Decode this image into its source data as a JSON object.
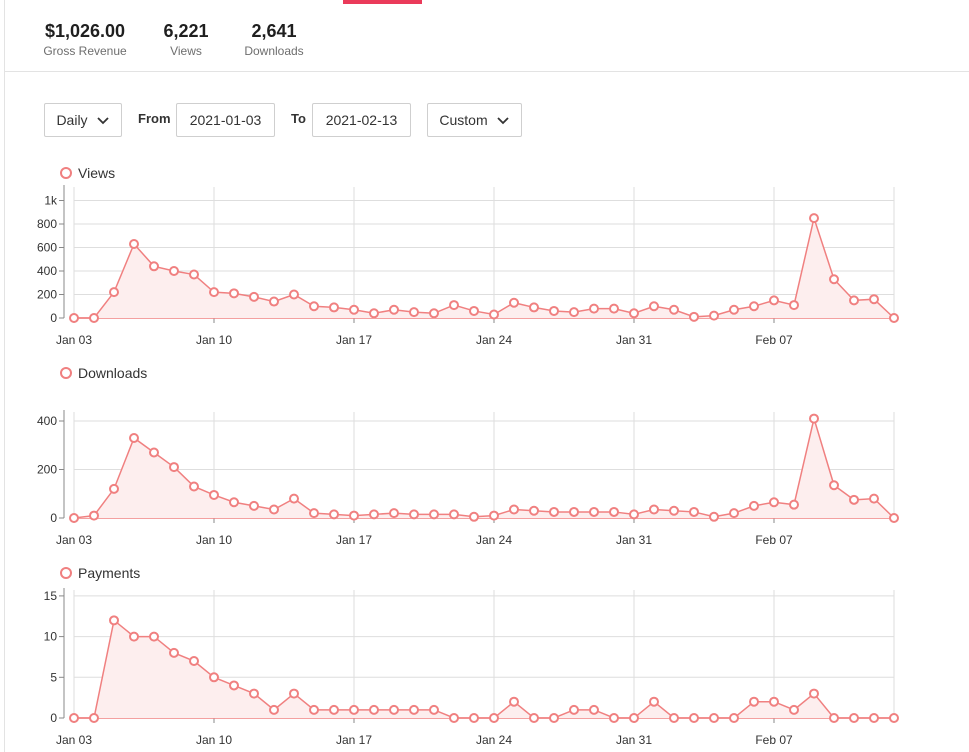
{
  "summary": {
    "gross_revenue": {
      "value": "$1,026.00",
      "label": "Gross Revenue"
    },
    "views": {
      "value": "6,221",
      "label": "Views"
    },
    "downloads": {
      "value": "2,641",
      "label": "Downloads"
    }
  },
  "filters": {
    "interval": "Daily",
    "from_label": "From",
    "from_date": "2021-01-03",
    "to_label": "To",
    "to_date": "2021-02-13",
    "range": "Custom"
  },
  "colors": {
    "series": "#f08080",
    "fill": "#fdeeee",
    "accent": "#ea3a5a"
  },
  "chart_data": [
    {
      "type": "area",
      "title": "Views",
      "x_ticks": [
        "Jan 03",
        "Jan 10",
        "Jan 17",
        "Jan 24",
        "Jan 31",
        "Feb 07"
      ],
      "y_ticks": [
        "0",
        "200",
        "400",
        "600",
        "800",
        "1k"
      ],
      "ylim": [
        0,
        1000
      ],
      "grid": true,
      "series": [
        {
          "name": "Views",
          "values": [
            0,
            0,
            220,
            630,
            440,
            400,
            370,
            220,
            210,
            180,
            140,
            200,
            100,
            90,
            70,
            40,
            70,
            50,
            40,
            110,
            60,
            30,
            130,
            90,
            60,
            50,
            80,
            80,
            40,
            100,
            70,
            10,
            20,
            70,
            100,
            150,
            110,
            850,
            330,
            150,
            160,
            0
          ]
        }
      ]
    },
    {
      "type": "area",
      "title": "Downloads",
      "x_ticks": [
        "Jan 03",
        "Jan 10",
        "Jan 17",
        "Jan 24",
        "Jan 31",
        "Feb 07"
      ],
      "y_ticks": [
        "0",
        "200",
        "400"
      ],
      "ylim": [
        0,
        510
      ],
      "grid": true,
      "series": [
        {
          "name": "Downloads",
          "values": [
            0,
            10,
            120,
            330,
            270,
            210,
            130,
            95,
            65,
            50,
            35,
            80,
            20,
            15,
            10,
            15,
            20,
            15,
            15,
            15,
            5,
            10,
            35,
            30,
            25,
            25,
            25,
            25,
            15,
            35,
            30,
            25,
            5,
            20,
            50,
            65,
            55,
            410,
            135,
            75,
            80,
            0
          ]
        }
      ]
    },
    {
      "type": "area",
      "title": "Payments",
      "x_ticks": [
        "Jan 03",
        "Jan 10",
        "Jan 17",
        "Jan 24",
        "Jan 31",
        "Feb 07"
      ],
      "y_ticks": [
        "0",
        "5",
        "10",
        "15"
      ],
      "ylim": [
        0,
        15
      ],
      "grid": true,
      "series": [
        {
          "name": "Payments",
          "values": [
            0,
            0,
            12,
            10,
            10,
            8,
            7,
            5,
            4,
            3,
            1,
            3,
            1,
            1,
            1,
            1,
            1,
            1,
            1,
            0,
            0,
            0,
            2,
            0,
            0,
            1,
            1,
            0,
            0,
            2,
            0,
            0,
            0,
            0,
            2,
            2,
            1,
            3,
            0,
            0,
            0,
            0
          ]
        }
      ]
    }
  ]
}
